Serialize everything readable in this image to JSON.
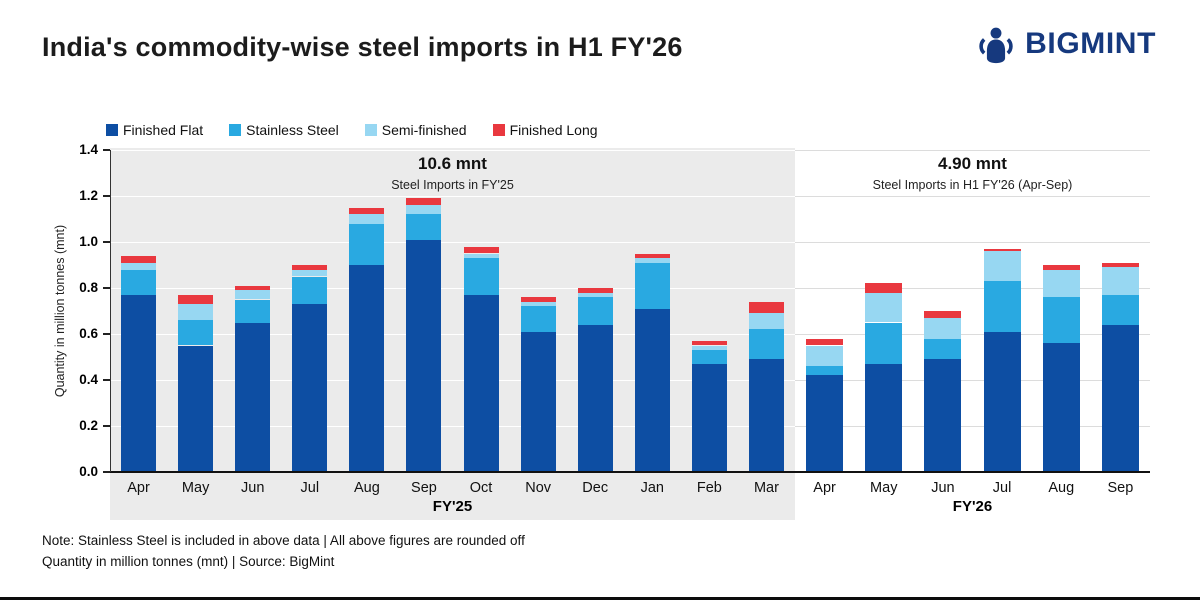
{
  "header": {
    "title": "India's commodity-wise steel imports in H1 FY'26",
    "brand": "BIGMINT"
  },
  "footer": {
    "note1": "Note: Stainless Steel is included in above data  |  All above figures are rounded off",
    "note2": "Quantity in million tonnes (mnt)  |  Source: BigMint"
  },
  "chart_data": {
    "type": "bar",
    "stacked": true,
    "title": "India's commodity-wise steel imports in H1 FY'26",
    "ylabel": "Quantity in million tonnes (mnt)",
    "ylim": [
      0,
      1.4
    ],
    "ytick_step": 0.2,
    "ytick_labels": [
      "0.0",
      "0.2",
      "0.4",
      "0.6",
      "0.8",
      "1.0",
      "1.2",
      "1.4"
    ],
    "grid": true,
    "legend_position": "top",
    "panel_background": "#ebebeb",
    "gridline_color_on_white": "#dcdcdc",
    "gridline_color_on_panel": "#ffffff",
    "series_names": [
      "Finished Flat",
      "Stainless Steel",
      "Semi-finished",
      "Finished Long"
    ],
    "series_colors": [
      "#0d4ea3",
      "#29a9e1",
      "#97d7f2",
      "#e9383f"
    ],
    "groups": [
      {
        "label": "FY'25",
        "annotation_value": "10.6 mnt",
        "annotation_caption": "Steel Imports in FY'25",
        "highlighted": true,
        "categories": [
          "Apr",
          "May",
          "Jun",
          "Jul",
          "Aug",
          "Sep",
          "Oct",
          "Nov",
          "Dec",
          "Jan",
          "Feb",
          "Mar"
        ],
        "series": [
          {
            "name": "Finished Flat",
            "values": [
              0.77,
              0.55,
              0.65,
              0.73,
              0.9,
              1.01,
              0.77,
              0.61,
              0.64,
              0.71,
              0.47,
              0.49
            ]
          },
          {
            "name": "Stainless Steel",
            "values": [
              0.11,
              0.11,
              0.1,
              0.12,
              0.18,
              0.11,
              0.16,
              0.11,
              0.12,
              0.2,
              0.06,
              0.13
            ]
          },
          {
            "name": "Semi-finished",
            "values": [
              0.03,
              0.07,
              0.04,
              0.03,
              0.04,
              0.04,
              0.02,
              0.02,
              0.02,
              0.02,
              0.02,
              0.07
            ]
          },
          {
            "name": "Finished Long",
            "values": [
              0.03,
              0.04,
              0.02,
              0.02,
              0.03,
              0.03,
              0.03,
              0.02,
              0.02,
              0.02,
              0.02,
              0.05
            ]
          }
        ]
      },
      {
        "label": "FY'26",
        "annotation_value": "4.90 mnt",
        "annotation_caption": "Steel Imports in H1 FY'26 (Apr-Sep)",
        "highlighted": false,
        "categories": [
          "Apr",
          "May",
          "Jun",
          "Jul",
          "Aug",
          "Sep"
        ],
        "series": [
          {
            "name": "Finished Flat",
            "values": [
              0.42,
              0.47,
              0.49,
              0.61,
              0.56,
              0.64
            ]
          },
          {
            "name": "Stainless Steel",
            "values": [
              0.04,
              0.18,
              0.09,
              0.22,
              0.2,
              0.13
            ]
          },
          {
            "name": "Semi-finished",
            "values": [
              0.09,
              0.13,
              0.09,
              0.13,
              0.12,
              0.12
            ]
          },
          {
            "name": "Finished Long",
            "values": [
              0.03,
              0.04,
              0.03,
              0.01,
              0.02,
              0.02
            ]
          }
        ]
      }
    ]
  }
}
